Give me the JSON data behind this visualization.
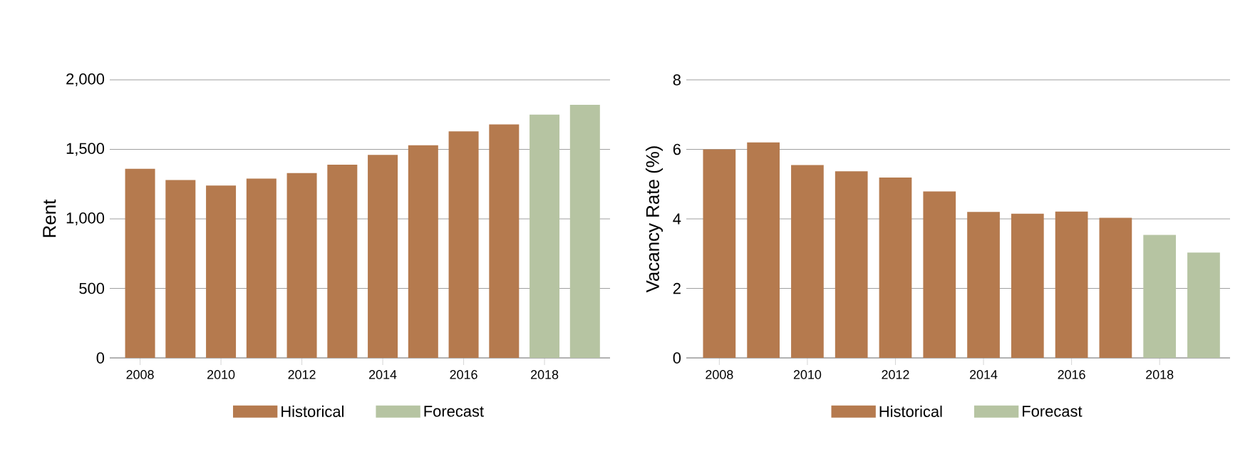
{
  "chart_data": [
    {
      "type": "bar",
      "ylabel": "Rent",
      "x": [
        2008,
        2009,
        2010,
        2011,
        2012,
        2013,
        2014,
        2015,
        2016,
        2017,
        2018,
        2019
      ],
      "series": [
        {
          "name": "Historical",
          "color": "#b57a4e",
          "values": [
            1360,
            1280,
            1240,
            1290,
            1330,
            1390,
            1460,
            1530,
            1630,
            1680,
            null,
            null
          ]
        },
        {
          "name": "Forecast",
          "color": "#b6c4a2",
          "values": [
            null,
            null,
            null,
            null,
            null,
            null,
            null,
            null,
            null,
            null,
            1750,
            1820
          ]
        }
      ],
      "xlim": [
        2007.25,
        2019.62
      ],
      "xticks": [
        2008,
        2010,
        2012,
        2014,
        2016,
        2018
      ],
      "ylim": [
        0,
        2000
      ],
      "yticks": [
        {
          "value": 0,
          "label": "0"
        },
        {
          "value": 500,
          "label": "500"
        },
        {
          "value": 1000,
          "label": "1,000"
        },
        {
          "value": 1500,
          "label": "1,500"
        },
        {
          "value": 2000,
          "label": "2,000"
        }
      ],
      "grid": "y",
      "legend": "bottom"
    },
    {
      "type": "bar",
      "ylabel": "Vacancy Rate (%)",
      "x": [
        2008,
        2009,
        2010,
        2011,
        2012,
        2013,
        2014,
        2015,
        2016,
        2017,
        2018,
        2019
      ],
      "series": [
        {
          "name": "Historical",
          "color": "#b57a4e",
          "values": [
            6.0,
            6.2,
            5.55,
            5.37,
            5.19,
            4.79,
            4.2,
            4.15,
            4.21,
            4.03,
            null,
            null
          ]
        },
        {
          "name": "Forecast",
          "color": "#b6c4a2",
          "values": [
            null,
            null,
            null,
            null,
            null,
            null,
            null,
            null,
            null,
            null,
            3.54,
            3.03
          ]
        }
      ],
      "xlim": [
        2007.25,
        2019.6
      ],
      "xticks": [
        2008,
        2010,
        2012,
        2014,
        2016,
        2018
      ],
      "ylim": [
        0,
        8
      ],
      "yticks": [
        0,
        2,
        4,
        6,
        8
      ],
      "grid": "y",
      "legend": "bottom"
    }
  ]
}
